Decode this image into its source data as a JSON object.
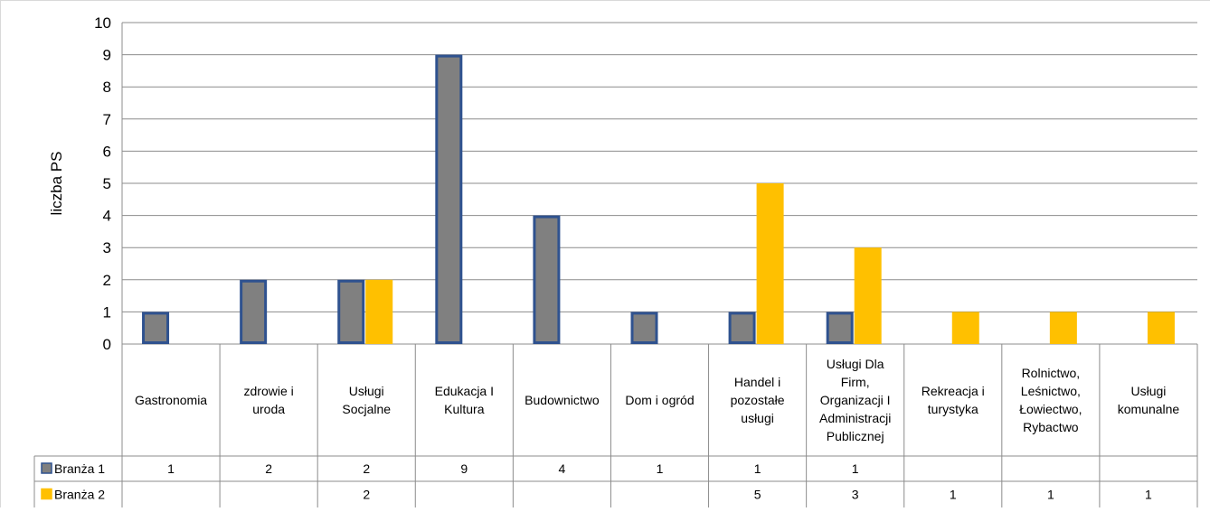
{
  "chart_data": {
    "type": "bar",
    "ylabel": "liczba PS",
    "ylim": [
      0,
      10
    ],
    "yticks": [
      0,
      1,
      2,
      3,
      4,
      5,
      6,
      7,
      8,
      9,
      10
    ],
    "grid": true,
    "legend": "data-table",
    "categories": [
      [
        "Gastronomia"
      ],
      [
        "zdrowie i",
        "uroda"
      ],
      [
        "Usługi",
        "Socjalne"
      ],
      [
        "Edukacja I",
        "Kultura"
      ],
      [
        "Budownictwo"
      ],
      [
        "Dom i ogród"
      ],
      [
        "Handel i",
        "pozostałe",
        "usługi"
      ],
      [
        "Usługi Dla",
        "Firm,",
        "Organizacji I",
        "Administracji",
        "Publicznej"
      ],
      [
        "Rekreacja i",
        "turystyka"
      ],
      [
        "Rolnictwo,",
        "Leśnictwo,",
        "Łowiectwo,",
        "Rybactwo"
      ],
      [
        "Usługi",
        "komunalne"
      ]
    ],
    "series": [
      {
        "name": "Branża 1",
        "color": "#808080",
        "border": "#2f528f",
        "values": [
          1,
          2,
          2,
          9,
          4,
          1,
          1,
          1,
          null,
          null,
          null
        ]
      },
      {
        "name": "Branża 2",
        "color": "#ffc000",
        "border": "#ffc000",
        "values": [
          null,
          null,
          2,
          null,
          null,
          null,
          5,
          3,
          1,
          1,
          1
        ]
      }
    ]
  }
}
